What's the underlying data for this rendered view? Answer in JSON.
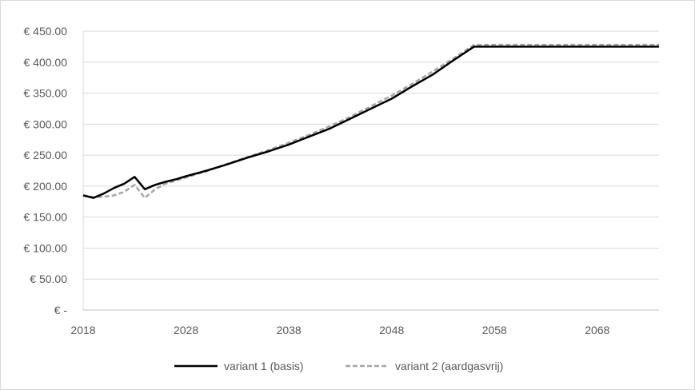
{
  "chart_data": {
    "type": "line",
    "title": "",
    "xlabel": "",
    "ylabel": "",
    "xlim": [
      2018,
      2074
    ],
    "ylim": [
      0,
      450
    ],
    "grid": true,
    "legend_position": "bottom",
    "x_ticks": [
      2018,
      2028,
      2038,
      2048,
      2058,
      2068
    ],
    "x_tick_labels": [
      "2018",
      "2028",
      "2038",
      "2048",
      "2058",
      "2068"
    ],
    "y_ticks": [
      0,
      50,
      100,
      150,
      200,
      250,
      300,
      350,
      400,
      450
    ],
    "y_tick_labels": [
      "€ -",
      "€ 50.00",
      "€ 100.00",
      "€ 150.00",
      "€ 200.00",
      "€ 250.00",
      "€ 300.00",
      "€ 350.00",
      "€ 400.00",
      "€ 450.00"
    ],
    "series": [
      {
        "name": "variant 1 (basis)",
        "color": "#000000",
        "style": "solid",
        "points": [
          [
            2018,
            185
          ],
          [
            2019,
            181
          ],
          [
            2020,
            188
          ],
          [
            2021,
            197
          ],
          [
            2022,
            204
          ],
          [
            2023,
            215
          ],
          [
            2024,
            195
          ],
          [
            2025,
            202
          ],
          [
            2026,
            207
          ],
          [
            2027,
            211
          ],
          [
            2028,
            216
          ],
          [
            2030,
            225
          ],
          [
            2032,
            235
          ],
          [
            2034,
            246
          ],
          [
            2036,
            256
          ],
          [
            2038,
            267
          ],
          [
            2040,
            280
          ],
          [
            2042,
            293
          ],
          [
            2044,
            309
          ],
          [
            2046,
            325
          ],
          [
            2048,
            341
          ],
          [
            2050,
            361
          ],
          [
            2052,
            380
          ],
          [
            2054,
            403
          ],
          [
            2056,
            425
          ],
          [
            2060,
            425
          ],
          [
            2065,
            425
          ],
          [
            2070,
            425
          ],
          [
            2074,
            425
          ]
        ]
      },
      {
        "name": "variant 2 (aardgasvrij)",
        "color": "#a6a6a6",
        "style": "dashed",
        "points": [
          [
            2018,
            185
          ],
          [
            2019,
            182
          ],
          [
            2020,
            183
          ],
          [
            2021,
            185
          ],
          [
            2022,
            191
          ],
          [
            2023,
            202
          ],
          [
            2024,
            181
          ],
          [
            2025,
            195
          ],
          [
            2026,
            204
          ],
          [
            2027,
            209
          ],
          [
            2028,
            214
          ],
          [
            2030,
            224
          ],
          [
            2032,
            236
          ],
          [
            2034,
            247
          ],
          [
            2036,
            258
          ],
          [
            2038,
            270
          ],
          [
            2040,
            283
          ],
          [
            2042,
            297
          ],
          [
            2044,
            312
          ],
          [
            2046,
            329
          ],
          [
            2048,
            346
          ],
          [
            2050,
            365
          ],
          [
            2052,
            385
          ],
          [
            2054,
            406
          ],
          [
            2056,
            428
          ],
          [
            2060,
            428
          ],
          [
            2065,
            428
          ],
          [
            2070,
            428
          ],
          [
            2074,
            428
          ]
        ]
      }
    ]
  }
}
